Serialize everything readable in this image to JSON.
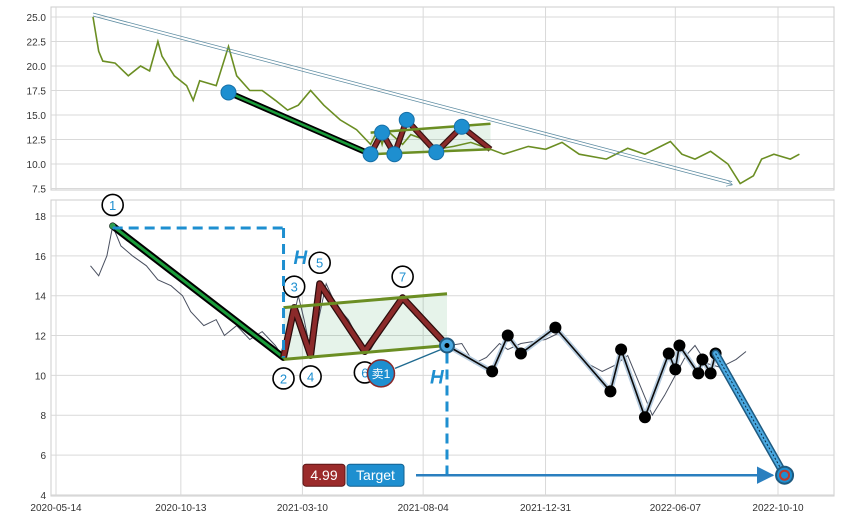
{
  "chart_data": [
    {
      "type": "line",
      "panel": "overview",
      "title": "",
      "xlabel": "",
      "ylabel": "",
      "ylim": [
        7.2,
        26
      ],
      "xlim": [
        "2020-05-14",
        "2022-11-20"
      ],
      "grid": true,
      "y_ticks": [
        "7.5",
        "10.0",
        "12.5",
        "15.0",
        "17.5",
        "20.0",
        "22.5",
        "25.0"
      ],
      "series": [
        {
          "style": "price",
          "color": "#6b8e23",
          "points": [
            [
              "2020-06-28",
              25.0
            ],
            [
              "2020-07-05",
              21.5
            ],
            [
              "2020-07-10",
              20.5
            ],
            [
              "2020-07-25",
              20.3
            ],
            [
              "2020-08-10",
              19.0
            ],
            [
              "2020-08-25",
              20.0
            ],
            [
              "2020-09-05",
              19.5
            ],
            [
              "2020-09-15",
              22.5
            ],
            [
              "2020-09-20",
              21.0
            ],
            [
              "2020-10-05",
              19.0
            ],
            [
              "2020-10-20",
              18.0
            ],
            [
              "2020-10-28",
              16.5
            ],
            [
              "2020-11-05",
              18.5
            ],
            [
              "2020-11-25",
              18.0
            ],
            [
              "2020-12-10",
              22.0
            ],
            [
              "2020-12-20",
              19.0
            ],
            [
              "2021-01-05",
              17.5
            ],
            [
              "2021-01-20",
              17.5
            ],
            [
              "2021-02-05",
              16.5
            ],
            [
              "2021-02-20",
              15.5
            ],
            [
              "2021-03-05",
              16.0
            ],
            [
              "2021-03-20",
              17.5
            ],
            [
              "2021-04-05",
              16.0
            ],
            [
              "2021-04-25",
              14.5
            ],
            [
              "2021-05-15",
              13.5
            ],
            [
              "2021-06-01",
              12.0
            ],
            [
              "2021-06-10",
              13.5
            ],
            [
              "2021-06-15",
              12.0
            ],
            [
              "2021-06-20",
              13.5
            ],
            [
              "2021-07-10",
              12.0
            ],
            [
              "2021-07-20",
              13.0
            ],
            [
              "2021-08-05",
              12.5
            ],
            [
              "2021-08-20",
              11.5
            ],
            [
              "2021-09-10",
              11.8
            ],
            [
              "2021-10-01",
              12.2
            ],
            [
              "2021-10-25",
              11.5
            ],
            [
              "2021-11-10",
              11.0
            ],
            [
              "2021-12-10",
              11.8
            ],
            [
              "2021-12-31",
              11.5
            ],
            [
              "2022-01-20",
              12.2
            ],
            [
              "2022-02-10",
              11.0
            ],
            [
              "2022-03-15",
              10.5
            ],
            [
              "2022-04-10",
              11.6
            ],
            [
              "2022-05-01",
              11.0
            ],
            [
              "2022-06-01",
              12.3
            ],
            [
              "2022-06-15",
              11.0
            ],
            [
              "2022-07-01",
              10.5
            ],
            [
              "2022-07-20",
              11.3
            ],
            [
              "2022-08-10",
              10.0
            ],
            [
              "2022-08-25",
              8.0
            ],
            [
              "2022-09-10",
              8.8
            ],
            [
              "2022-09-20",
              10.5
            ],
            [
              "2022-10-05",
              11.0
            ],
            [
              "2022-10-25",
              10.5
            ],
            [
              "2022-11-05",
              11.0
            ]
          ]
        },
        {
          "style": "trend-arrow",
          "color": "#5b8aa0",
          "points": [
            [
              "2020-06-28",
              25.2
            ],
            [
              "2022-08-20",
              8.0
            ]
          ]
        },
        {
          "style": "downleg",
          "color": "#1a9c3a",
          "points": [
            [
              "2020-12-10",
              17.3
            ],
            [
              "2021-06-01",
              11.0
            ]
          ]
        },
        {
          "style": "zigzag",
          "color": "#8b2a2a",
          "points": [
            [
              "2021-06-01",
              11.0
            ],
            [
              "2021-06-15",
              13.2
            ],
            [
              "2021-06-30",
              11.0
            ],
            [
              "2021-07-15",
              14.5
            ],
            [
              "2021-08-20",
              11.2
            ],
            [
              "2021-09-20",
              13.8
            ],
            [
              "2021-10-25",
              11.5
            ]
          ]
        },
        {
          "style": "channel-upper",
          "color": "#6b8e23",
          "points": [
            [
              "2021-06-01",
              13.2
            ],
            [
              "2021-10-25",
              14.1
            ]
          ]
        },
        {
          "style": "channel-lower",
          "color": "#6b8e23",
          "points": [
            [
              "2021-06-01",
              11.0
            ],
            [
              "2021-10-25",
              11.5
            ]
          ]
        }
      ],
      "markers": [
        [
          "2020-12-10",
          17.3
        ],
        [
          "2021-06-01",
          11.0
        ],
        [
          "2021-06-15",
          13.2
        ],
        [
          "2021-06-30",
          11.0
        ],
        [
          "2021-07-15",
          14.5
        ],
        [
          "2021-08-20",
          11.2
        ],
        [
          "2021-09-20",
          13.8
        ]
      ]
    },
    {
      "type": "line",
      "panel": "detail",
      "title": "",
      "xlabel": "",
      "ylabel": "",
      "ylim": [
        3.8,
        19
      ],
      "xlim": [
        "2020-05-14",
        "2022-11-20"
      ],
      "grid": true,
      "x_ticks": [
        "2020-05-14",
        "2020-10-13",
        "2021-03-10",
        "2021-08-04",
        "2021-12-31",
        "2022-06-07",
        "2022-10-10"
      ],
      "y_ticks": [
        "4",
        "6",
        "8",
        "10",
        "12",
        "14",
        "16",
        "18"
      ],
      "series": [
        {
          "style": "price",
          "color": "#4a5060",
          "points": [
            [
              "2020-06-25",
              15.5
            ],
            [
              "2020-07-05",
              15.0
            ],
            [
              "2020-07-15",
              16.0
            ],
            [
              "2020-07-22",
              17.5
            ],
            [
              "2020-08-01",
              16.5
            ],
            [
              "2020-08-15",
              16.0
            ],
            [
              "2020-09-01",
              15.5
            ],
            [
              "2020-09-15",
              14.8
            ],
            [
              "2020-10-01",
              14.5
            ],
            [
              "2020-10-15",
              14.0
            ],
            [
              "2020-10-25",
              13.2
            ],
            [
              "2020-11-10",
              12.5
            ],
            [
              "2020-11-25",
              12.8
            ],
            [
              "2020-12-05",
              12.0
            ],
            [
              "2020-12-20",
              12.5
            ],
            [
              "2021-01-05",
              11.8
            ],
            [
              "2021-01-20",
              12.2
            ],
            [
              "2021-02-05",
              11.5
            ],
            [
              "2021-02-15",
              10.9
            ],
            [
              "2021-02-25",
              12.5
            ],
            [
              "2021-03-05",
              14.0
            ],
            [
              "2021-03-12",
              12.8
            ],
            [
              "2021-03-20",
              11.2
            ],
            [
              "2021-03-28",
              12.5
            ],
            [
              "2021-04-08",
              14.6
            ],
            [
              "2021-04-20",
              13.5
            ],
            [
              "2021-05-05",
              12.8
            ],
            [
              "2021-05-20",
              11.6
            ],
            [
              "2021-06-01",
              11.3
            ],
            [
              "2021-06-15",
              12.3
            ],
            [
              "2021-07-01",
              13.4
            ],
            [
              "2021-07-15",
              13.9
            ],
            [
              "2021-07-25",
              13.0
            ],
            [
              "2021-08-10",
              12.5
            ],
            [
              "2021-08-25",
              11.9
            ],
            [
              "2021-09-05",
              11.5
            ],
            [
              "2021-09-20",
              11.6
            ],
            [
              "2021-10-05",
              10.6
            ],
            [
              "2021-10-20",
              10.9
            ],
            [
              "2021-11-05",
              11.6
            ],
            [
              "2021-11-15",
              11.3
            ],
            [
              "2021-12-01",
              11.6
            ],
            [
              "2021-12-31",
              11.8
            ],
            [
              "2022-01-15",
              12.1
            ],
            [
              "2022-02-01",
              11.4
            ],
            [
              "2022-02-20",
              10.6
            ],
            [
              "2022-03-10",
              10.2
            ],
            [
              "2022-03-25",
              10.5
            ],
            [
              "2022-04-10",
              11.0
            ],
            [
              "2022-04-25",
              9.5
            ],
            [
              "2022-05-10",
              8.0
            ],
            [
              "2022-05-25",
              9.0
            ],
            [
              "2022-06-07",
              10.0
            ],
            [
              "2022-06-20",
              11.0
            ],
            [
              "2022-07-01",
              11.5
            ],
            [
              "2022-07-15",
              10.6
            ],
            [
              "2022-08-01",
              10.4
            ],
            [
              "2022-08-20",
              10.8
            ],
            [
              "2022-09-01",
              11.2
            ]
          ]
        },
        {
          "style": "downleg",
          "color": "#1a9c3a",
          "points": [
            [
              "2020-07-22",
              17.5
            ],
            [
              "2021-02-15",
              10.9
            ]
          ]
        },
        {
          "style": "zigzag",
          "color": "#8b2a2a",
          "points": [
            [
              "2021-02-15",
              10.9
            ],
            [
              "2021-02-28",
              13.4
            ],
            [
              "2021-03-20",
              11.0
            ],
            [
              "2021-03-31",
              14.6
            ],
            [
              "2021-05-25",
              11.2
            ],
            [
              "2021-07-10",
              13.9
            ],
            [
              "2021-09-02",
              11.5
            ]
          ]
        },
        {
          "style": "channel-upper",
          "color": "#6b8e23",
          "points": [
            [
              "2021-02-15",
              13.4
            ],
            [
              "2021-09-02",
              14.1
            ]
          ]
        },
        {
          "style": "channel-lower",
          "color": "#6b8e23",
          "points": [
            [
              "2021-02-15",
              10.8
            ],
            [
              "2021-09-02",
              11.5
            ]
          ]
        },
        {
          "style": "forecast",
          "color": "#0a0a0a",
          "points": [
            [
              "2021-09-02",
              11.5
            ],
            [
              "2021-10-27",
              10.2
            ],
            [
              "2021-11-15",
              12.0
            ],
            [
              "2021-12-01",
              11.1
            ],
            [
              "2022-01-12",
              12.4
            ],
            [
              "2022-03-20",
              9.2
            ],
            [
              "2022-04-02",
              11.3
            ],
            [
              "2022-05-01",
              7.9
            ],
            [
              "2022-05-30",
              11.1
            ],
            [
              "2022-06-07",
              10.3
            ],
            [
              "2022-06-12",
              11.5
            ],
            [
              "2022-07-05",
              10.1
            ],
            [
              "2022-07-10",
              10.8
            ],
            [
              "2022-07-20",
              10.1
            ],
            [
              "2022-07-26",
              11.1
            ]
          ]
        },
        {
          "style": "target-leg",
          "color": "#2a8ccc",
          "points": [
            [
              "2022-07-26",
              11.1
            ],
            [
              "2022-10-18",
              4.99
            ]
          ]
        }
      ],
      "zigzag_labels": [
        "1",
        "2",
        "3",
        "4",
        "5",
        "6",
        "7"
      ],
      "height_label": "H",
      "sell_label": "卖1",
      "target_value": "4.99",
      "target_label": "Target"
    }
  ]
}
